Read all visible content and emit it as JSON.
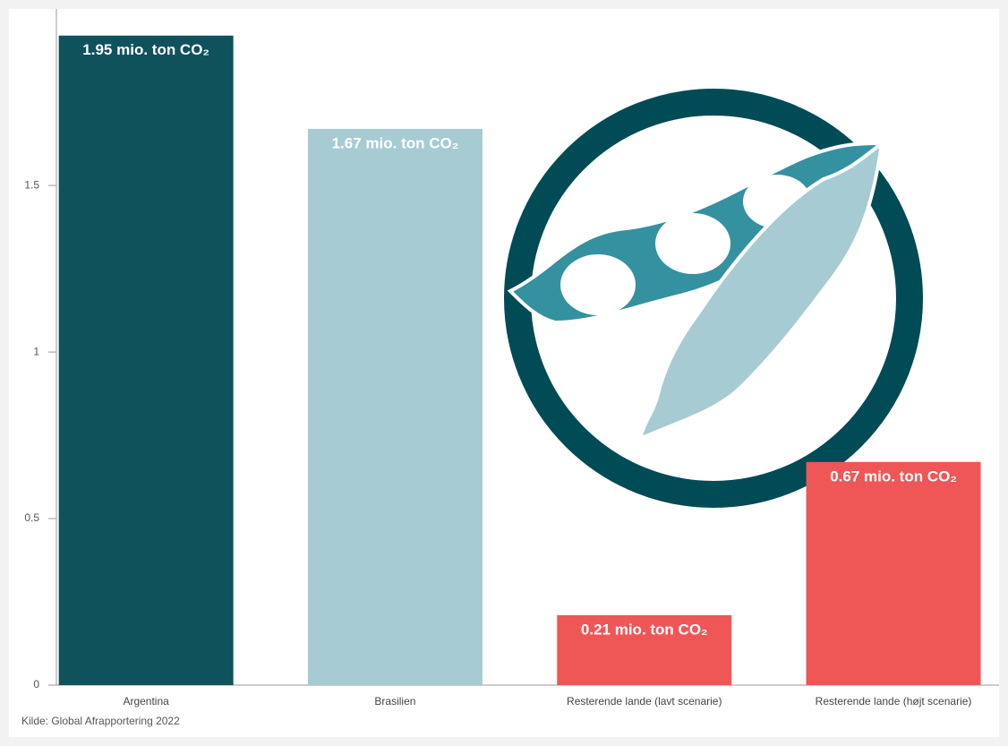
{
  "chart_data": {
    "type": "bar",
    "categories": [
      "Argentina",
      "Brasilien",
      "Resterende lande (lavt scenarie)",
      "Resterende lande (højt scenarie)"
    ],
    "values": [
      1.95,
      1.67,
      0.21,
      0.67
    ],
    "value_labels": [
      "1.95 mio. ton CO₂",
      "1.67 mio. ton CO₂",
      "0.21 mio. ton CO₂",
      "0.67 mio. ton CO₂"
    ],
    "colors": [
      "#0f525c",
      "#a6cbd3",
      "#ef5656",
      "#ef5656"
    ],
    "ylim": [
      0,
      2.03
    ],
    "yticks": [
      0,
      0.5,
      1,
      1.5
    ],
    "grid": false,
    "source": "Kilde: Global Afrapportering 2022"
  }
}
